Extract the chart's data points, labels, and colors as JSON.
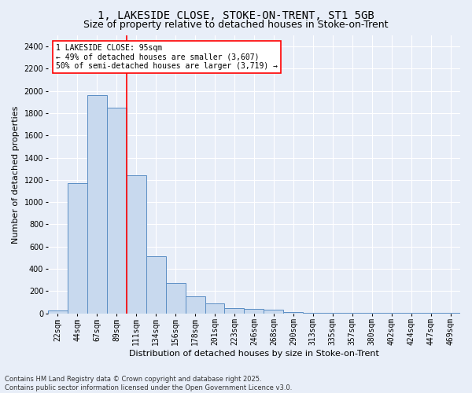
{
  "title_line1": "1, LAKESIDE CLOSE, STOKE-ON-TRENT, ST1 5GB",
  "title_line2": "Size of property relative to detached houses in Stoke-on-Trent",
  "xlabel": "Distribution of detached houses by size in Stoke-on-Trent",
  "ylabel": "Number of detached properties",
  "categories": [
    "22sqm",
    "44sqm",
    "67sqm",
    "89sqm",
    "111sqm",
    "134sqm",
    "156sqm",
    "178sqm",
    "201sqm",
    "223sqm",
    "246sqm",
    "268sqm",
    "290sqm",
    "313sqm",
    "335sqm",
    "357sqm",
    "380sqm",
    "402sqm",
    "424sqm",
    "447sqm",
    "469sqm"
  ],
  "values": [
    28,
    1170,
    1960,
    1850,
    1240,
    515,
    275,
    155,
    90,
    50,
    38,
    30,
    10,
    5,
    3,
    2,
    2,
    2,
    2,
    2,
    2
  ],
  "bar_color": "#c8d9ee",
  "bar_edge_color": "#5b8ec4",
  "vline_color": "red",
  "annotation_text": "1 LAKESIDE CLOSE: 95sqm\n← 49% of detached houses are smaller (3,607)\n50% of semi-detached houses are larger (3,719) →",
  "annotation_box_color": "white",
  "annotation_box_edge": "red",
  "ylim": [
    0,
    2500
  ],
  "yticks": [
    0,
    200,
    400,
    600,
    800,
    1000,
    1200,
    1400,
    1600,
    1800,
    2000,
    2200,
    2400
  ],
  "footer_line1": "Contains HM Land Registry data © Crown copyright and database right 2025.",
  "footer_line2": "Contains public sector information licensed under the Open Government Licence v3.0.",
  "bg_color": "#e8eef8",
  "plot_bg_color": "#e8eef8",
  "title_fontsize": 10,
  "subtitle_fontsize": 9,
  "tick_fontsize": 7,
  "ylabel_fontsize": 8,
  "xlabel_fontsize": 8,
  "annotation_fontsize": 7,
  "footer_fontsize": 6
}
